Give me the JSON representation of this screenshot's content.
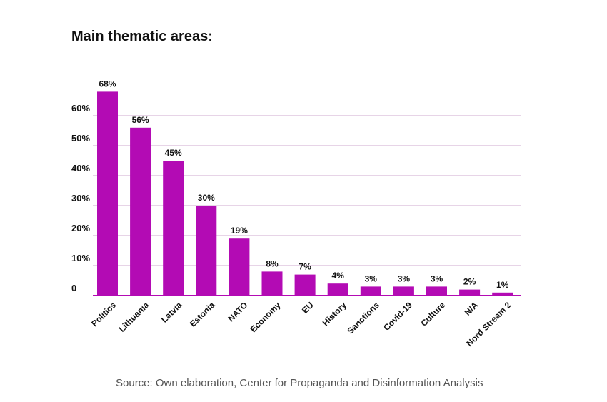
{
  "source": "Source: Own elaboration, Center for Propaganda and Disinformation Analysis",
  "colors": {
    "bar": "#b30bb4",
    "grid": "#cfa8cf",
    "axis": "#b30bb4"
  },
  "chart_data": {
    "type": "bar",
    "title": "Main thematic areas:",
    "categories": [
      "Politics",
      "Lithuania",
      "Latvia",
      "Estonia",
      "NATO",
      "Economy",
      "EU",
      "History",
      "Sanctions",
      "Covid-19",
      "Culture",
      "N/A",
      "Nord Stream 2"
    ],
    "values": [
      68,
      56,
      45,
      30,
      19,
      8,
      7,
      4,
      3,
      3,
      3,
      2,
      1
    ],
    "data_labels": [
      "68%",
      "56%",
      "45%",
      "30%",
      "19%",
      "8%",
      "7%",
      "4%",
      "3%",
      "3%",
      "3%",
      "2%",
      "1%"
    ],
    "y_ticks": [
      0,
      10,
      20,
      30,
      40,
      50,
      60
    ],
    "y_tick_labels": [
      "0",
      "10%",
      "20%",
      "30%",
      "40%",
      "50%",
      "60%"
    ],
    "ylim": [
      0,
      60
    ],
    "grid": true,
    "legend": "none"
  }
}
